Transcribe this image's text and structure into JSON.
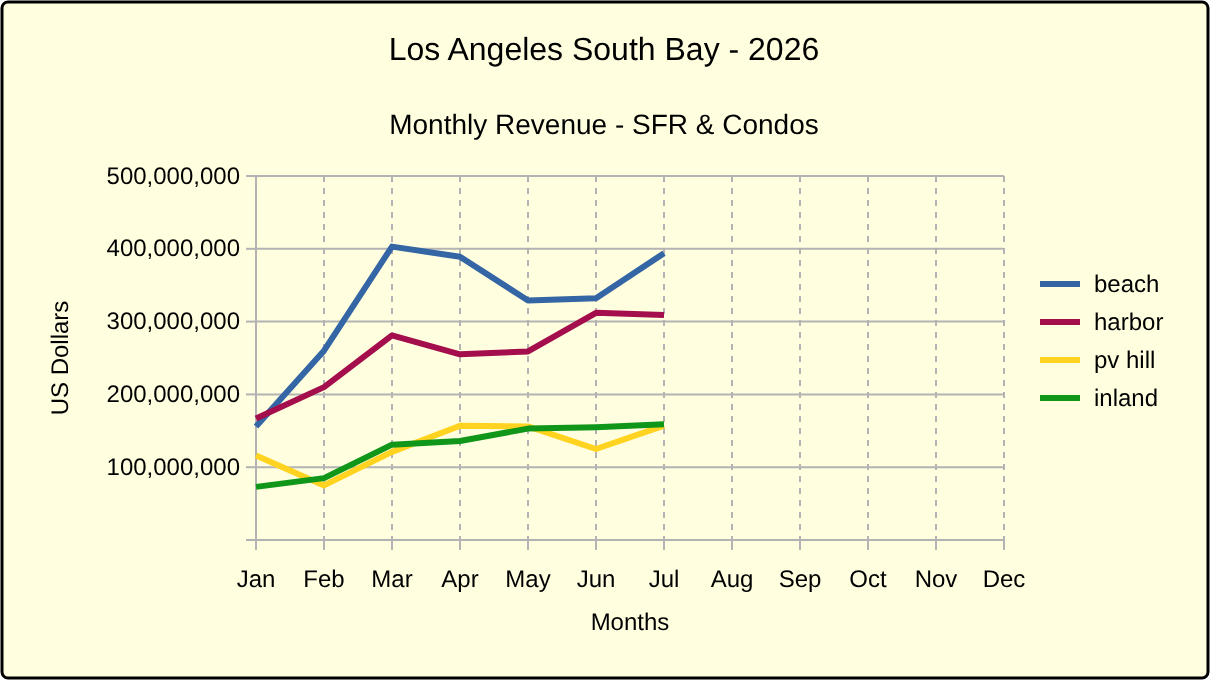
{
  "chart_data": {
    "type": "line",
    "title": "Los Angeles South Bay - 2026",
    "subtitle": "Monthly Revenue - SFR & Condos",
    "xlabel": "Months",
    "ylabel": "US Dollars",
    "categories": [
      "Jan",
      "Feb",
      "Mar",
      "Apr",
      "May",
      "Jun",
      "Jul",
      "Aug",
      "Sep",
      "Oct",
      "Nov",
      "Dec"
    ],
    "series": [
      {
        "name": "beach",
        "color": "#3465a4",
        "values": [
          156000000,
          260000000,
          403000000,
          389000000,
          329000000,
          332000000,
          394000000,
          null,
          null,
          null,
          null,
          null
        ]
      },
      {
        "name": "harbor",
        "color": "#a50e4c",
        "values": [
          167000000,
          210000000,
          281000000,
          255000000,
          259000000,
          312000000,
          309000000,
          null,
          null,
          null,
          null,
          null
        ]
      },
      {
        "name": "pv hill",
        "color": "#ffd320",
        "values": [
          116000000,
          75000000,
          121000000,
          157000000,
          156000000,
          125000000,
          157000000,
          null,
          null,
          null,
          null,
          null
        ]
      },
      {
        "name": "inland",
        "color": "#109618",
        "values": [
          73000000,
          85000000,
          131000000,
          136000000,
          153000000,
          155000000,
          159000000,
          null,
          null,
          null,
          null,
          null
        ]
      }
    ],
    "ylim": [
      0,
      500000000
    ],
    "yticks": [
      {
        "value": 0,
        "label": null
      },
      {
        "value": 100000000,
        "label": "100,000,000"
      },
      {
        "value": 200000000,
        "label": "200,000,000"
      },
      {
        "value": 300000000,
        "label": "300,000,000"
      },
      {
        "value": 400000000,
        "label": "400,000,000"
      },
      {
        "value": 500000000,
        "label": "500,000,000"
      }
    ],
    "grid": true,
    "legend": "right",
    "marker": "none",
    "line_style": "solid"
  }
}
